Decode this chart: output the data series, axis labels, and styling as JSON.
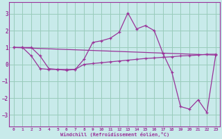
{
  "background_color": "#c8eaea",
  "grid_color": "#99ccbb",
  "line_color": "#993399",
  "xlabel": "Windchill (Refroidissement éolien,°C)",
  "xlim": [
    -0.5,
    23.5
  ],
  "ylim": [
    -3.7,
    3.7
  ],
  "yticks": [
    -3,
    -2,
    -1,
    0,
    1,
    2,
    3
  ],
  "xticks": [
    0,
    1,
    2,
    3,
    4,
    5,
    6,
    7,
    8,
    9,
    10,
    11,
    12,
    13,
    14,
    15,
    16,
    17,
    18,
    19,
    20,
    21,
    22,
    23
  ],
  "line1_x": [
    0,
    1,
    2,
    3,
    4,
    5,
    6,
    7,
    8,
    9,
    10,
    11,
    12,
    13,
    14,
    15,
    16,
    17,
    18,
    19,
    20,
    21,
    22,
    23
  ],
  "line1_y": [
    1.0,
    1.0,
    1.0,
    0.5,
    -0.25,
    -0.3,
    -0.35,
    -0.3,
    0.3,
    1.3,
    1.4,
    1.55,
    1.9,
    3.05,
    2.1,
    2.3,
    2.0,
    0.65,
    -0.45,
    -2.5,
    -2.65,
    -2.1,
    -2.85,
    0.55
  ],
  "line2_x": [
    0,
    1,
    2,
    3,
    4,
    5,
    6,
    7,
    8,
    9,
    10,
    11,
    12,
    13,
    14,
    15,
    16,
    17,
    18,
    19,
    20,
    21,
    22,
    23
  ],
  "line2_y": [
    1.0,
    1.0,
    0.5,
    -0.25,
    -0.3,
    -0.3,
    -0.3,
    -0.3,
    0.0,
    0.05,
    0.1,
    0.15,
    0.2,
    0.25,
    0.3,
    0.35,
    0.38,
    0.42,
    0.45,
    0.5,
    0.52,
    0.55,
    0.6,
    0.6
  ],
  "line3_x": [
    0,
    23
  ],
  "line3_y": [
    1.0,
    0.55
  ]
}
